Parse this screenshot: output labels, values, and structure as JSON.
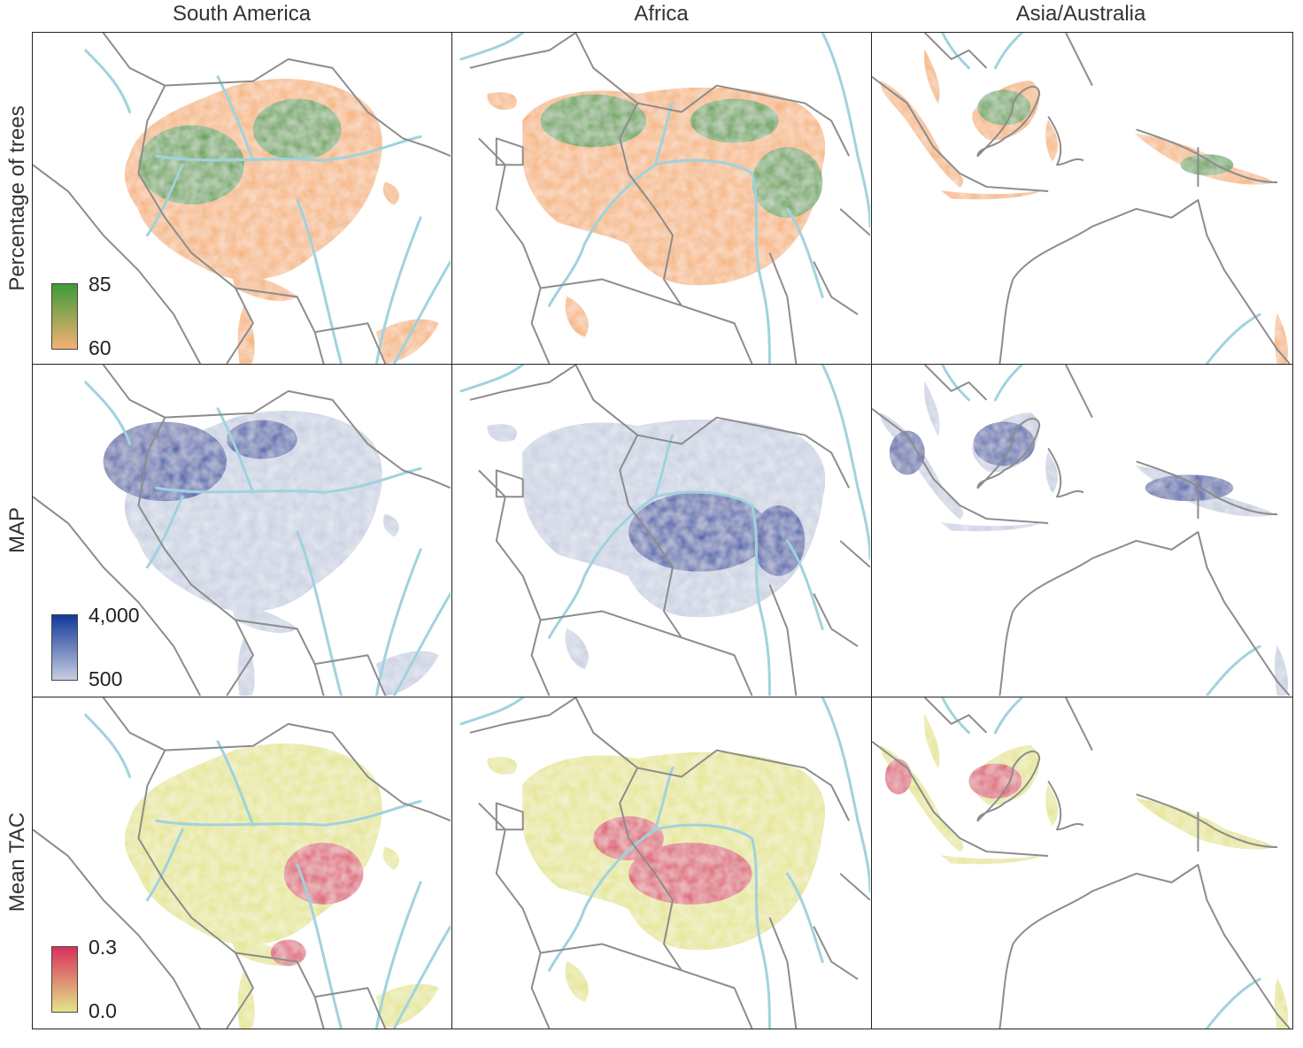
{
  "columns": [
    {
      "label": "South America"
    },
    {
      "label": "Africa"
    },
    {
      "label": "Asia/Australia"
    }
  ],
  "rows": [
    {
      "label": "Percentage of trees",
      "legend": {
        "max": "85",
        "min": "60"
      },
      "colors": {
        "high": "#3f9a3a",
        "low": "#f5b072"
      }
    },
    {
      "label": "MAP",
      "legend": {
        "max": "4,000",
        "min": "500"
      },
      "colors": {
        "high": "#13389a",
        "low": "#c6cde0"
      }
    },
    {
      "label": "Mean TAC",
      "legend": {
        "max": "0.3",
        "min": "0.0"
      },
      "colors": {
        "high": "#d8305a",
        "low": "#e4e48a"
      }
    }
  ],
  "style": {
    "river_color": "#9fd3de",
    "border_color": "#8c8c8c"
  }
}
